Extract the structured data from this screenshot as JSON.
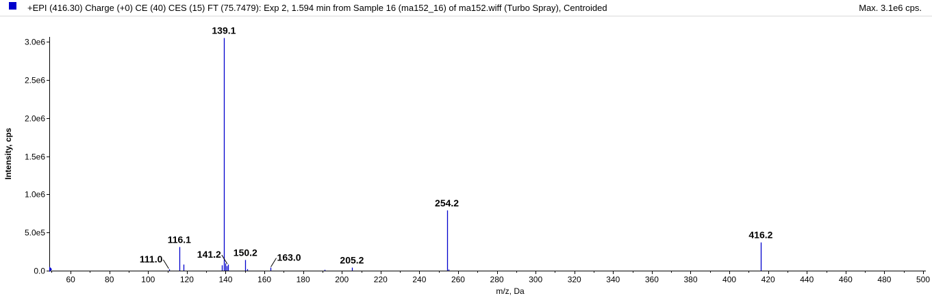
{
  "header": {
    "title": "+EPI (416.30) Charge (+0) CE (40) CES (15) FT (75.7479): Exp 2, 1.594 min from Sample 16 (ma152_16) of ma152.wiff (Turbo Spray), Centroided",
    "max_label": "Max. 3.1e6 cps."
  },
  "colors": {
    "series": "#0000cc",
    "axis": "#000000",
    "background": "#ffffff"
  },
  "chart_data": {
    "type": "bar",
    "title": "+EPI (416.30) Charge (+0) CE (40) CES (15) FT (75.7479): Exp 2, 1.594 min from Sample 16 (ma152_16) of ma152.wiff (Turbo Spray), Centroided",
    "xlabel": "m/z, Da",
    "ylabel": "Intensity, cps",
    "xlim": [
      49,
      500
    ],
    "ylim": [
      0,
      3100000
    ],
    "x_ticks": [
      60,
      80,
      100,
      120,
      140,
      160,
      180,
      200,
      220,
      240,
      260,
      280,
      300,
      320,
      340,
      360,
      380,
      400,
      420,
      440,
      460,
      480,
      500
    ],
    "y_ticks": [
      {
        "value": 0,
        "label": "0.0"
      },
      {
        "value": 500000,
        "label": "5.0e5"
      },
      {
        "value": 1000000,
        "label": "1.0e6"
      },
      {
        "value": 1500000,
        "label": "1.5e6"
      },
      {
        "value": 2000000,
        "label": "2.0e6"
      },
      {
        "value": 2500000,
        "label": "2.5e6"
      },
      {
        "value": 3000000,
        "label": "3.0e6"
      }
    ],
    "peaks": [
      {
        "mz": 49.5,
        "intensity": 40000
      },
      {
        "mz": 111.0,
        "intensity": 18000
      },
      {
        "mz": 116.1,
        "intensity": 310000
      },
      {
        "mz": 118.2,
        "intensity": 80000
      },
      {
        "mz": 137.9,
        "intensity": 70000
      },
      {
        "mz": 139.1,
        "intensity": 3050000
      },
      {
        "mz": 139.7,
        "intensity": 95000
      },
      {
        "mz": 140.4,
        "intensity": 60000
      },
      {
        "mz": 141.2,
        "intensity": 80000
      },
      {
        "mz": 150.2,
        "intensity": 140000
      },
      {
        "mz": 151.1,
        "intensity": 20000
      },
      {
        "mz": 163.0,
        "intensity": 40000
      },
      {
        "mz": 191.0,
        "intensity": 12000
      },
      {
        "mz": 205.2,
        "intensity": 40000
      },
      {
        "mz": 254.2,
        "intensity": 790000
      },
      {
        "mz": 255.2,
        "intensity": 15000
      },
      {
        "mz": 416.2,
        "intensity": 370000
      }
    ],
    "annotations": [
      {
        "label": "139.1",
        "mz": 139.1,
        "intensity": 3050000,
        "leader": false
      },
      {
        "label": "116.1",
        "mz": 116.1,
        "intensity": 310000,
        "leader": false
      },
      {
        "label": "254.2",
        "mz": 254.2,
        "intensity": 790000,
        "leader": false
      },
      {
        "label": "416.2",
        "mz": 416.2,
        "intensity": 370000,
        "leader": false
      },
      {
        "label": "150.2",
        "mz": 150.2,
        "intensity": 140000,
        "leader": false
      },
      {
        "label": "205.2",
        "mz": 205.2,
        "intensity": 40000,
        "leader": false
      },
      {
        "label": "111.0",
        "mz": 111.0,
        "intensity": 18000,
        "leader": true,
        "side": "left"
      },
      {
        "label": "141.2",
        "mz": 141.2,
        "intensity": 80000,
        "leader": true,
        "side": "left"
      },
      {
        "label": "163.0",
        "mz": 163.0,
        "intensity": 40000,
        "leader": true,
        "side": "right"
      }
    ]
  }
}
